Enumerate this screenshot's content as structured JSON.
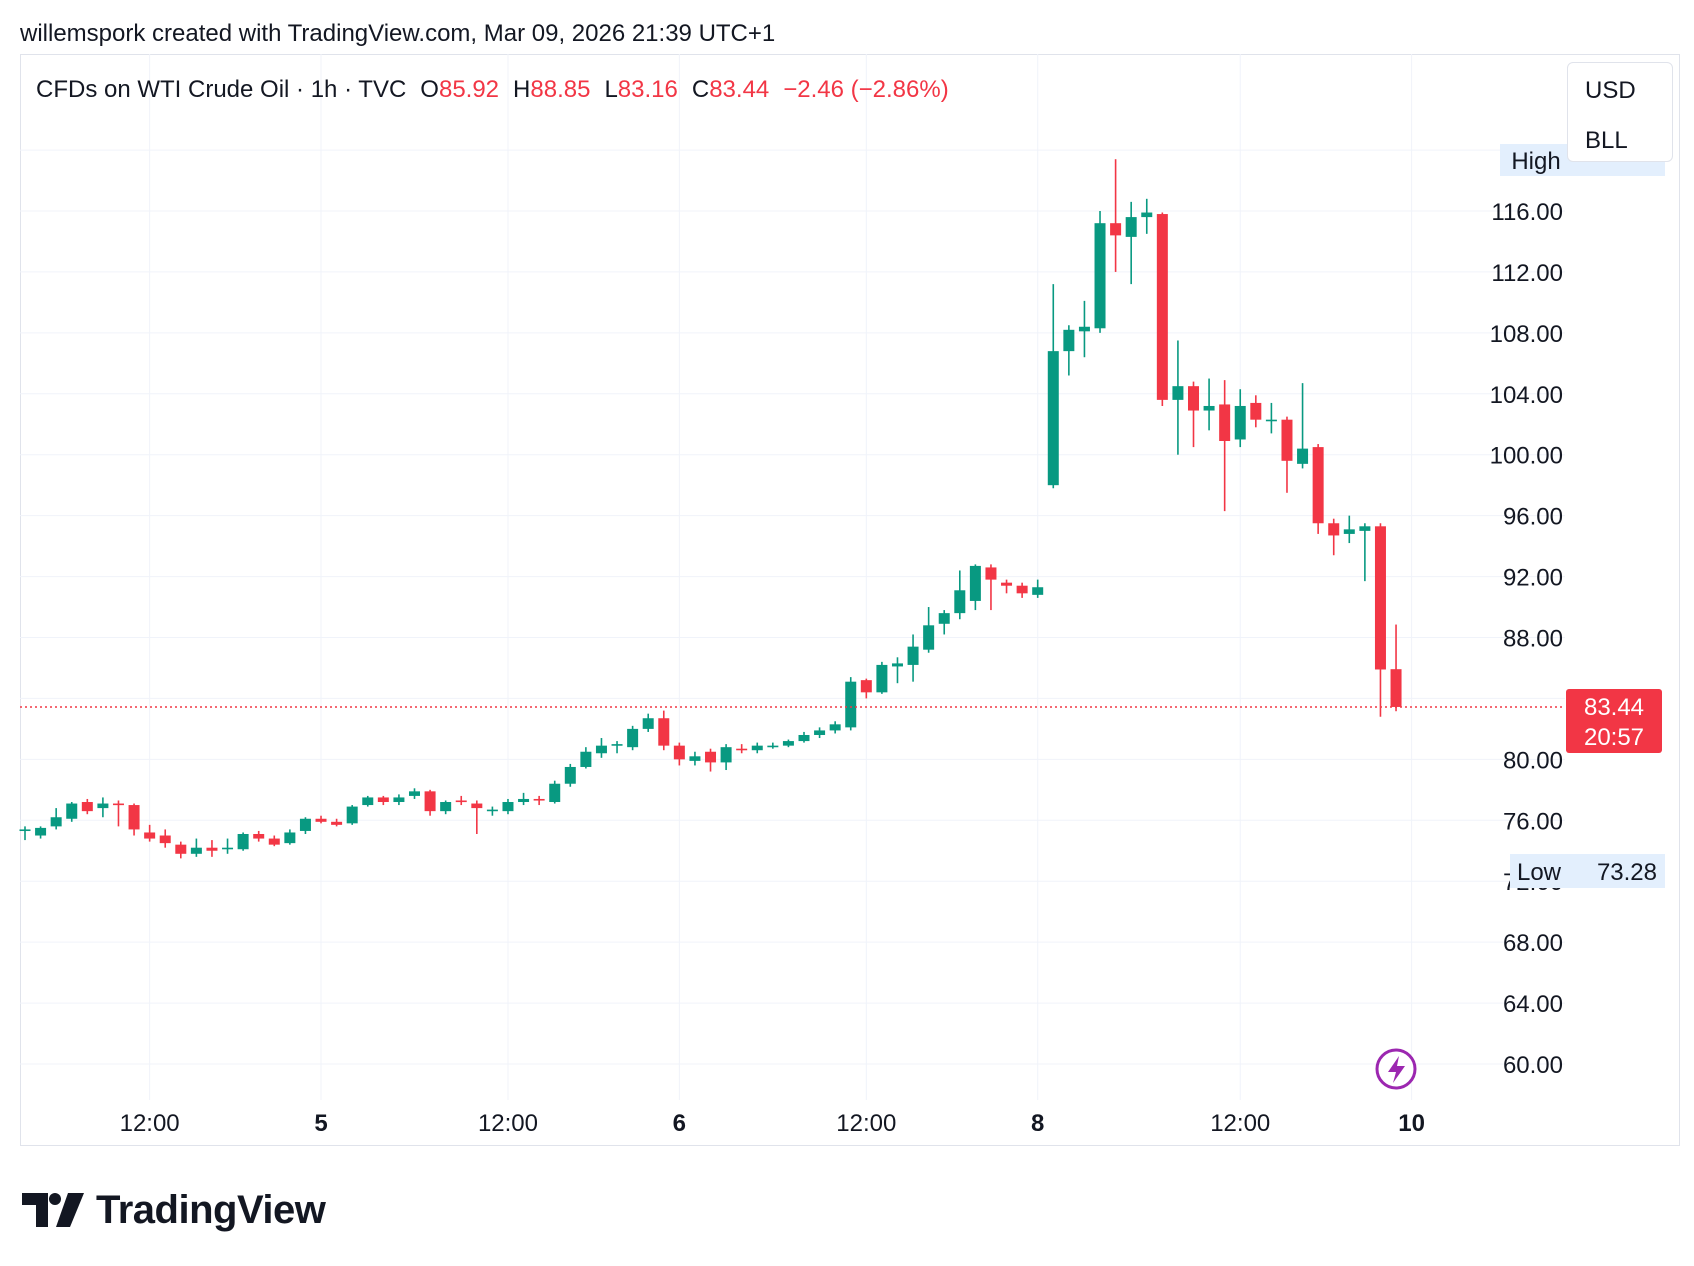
{
  "header": {
    "credit": "willemspork created with TradingView.com, Mar 09, 2026 21:39 UTC+1"
  },
  "legend": {
    "symbol": "CFDs on WTI Crude Oil · 1h · TVC",
    "open_label": "O",
    "open": "85.92",
    "high_label": "H",
    "high": "88.85",
    "low_label": "L",
    "low": "83.16",
    "close_label": "C",
    "close": "83.44",
    "change": "−2.46 (−2.86%)"
  },
  "currency": {
    "primary": "USD",
    "secondary": "BLL"
  },
  "price_axis": {
    "high_label": "High",
    "low_label": "Low",
    "low_value": "73.28",
    "last_price": "83.44",
    "countdown": "20:57"
  },
  "brand": {
    "name": "TradingView"
  },
  "colors": {
    "up": "#089981",
    "down": "#f23645",
    "grid": "#f0f3fa",
    "text": "#131722",
    "purple": "#9c27b0"
  },
  "icons": {
    "lightning": "lightning-icon",
    "logo": "tradingview-logo-icon"
  },
  "chart_data": {
    "type": "candlestick",
    "title": "CFDs on WTI Crude Oil · 1h · TVC",
    "ylim": [
      58,
      122
    ],
    "yticks": [
      60,
      64,
      68,
      72,
      76,
      80,
      88,
      92,
      96,
      100,
      104,
      108,
      112,
      116
    ],
    "ytick_labels": [
      "60.00",
      "64.00",
      "68.00",
      "72.00",
      "76.00",
      "80.00",
      "88.00",
      "92.00",
      "96.00",
      "100.00",
      "104.00",
      "108.00",
      "112.00",
      "116.00"
    ],
    "xticks": [
      {
        "label": "12:00",
        "index": 8,
        "bold": false
      },
      {
        "label": "5",
        "index": 19,
        "bold": true
      },
      {
        "label": "12:00",
        "index": 31,
        "bold": false
      },
      {
        "label": "6",
        "index": 42,
        "bold": true
      },
      {
        "label": "12:00",
        "index": 54,
        "bold": false
      },
      {
        "label": "8",
        "index": 65,
        "bold": true
      },
      {
        "label": "12:00",
        "index": 78,
        "bold": false
      },
      {
        "label": "10",
        "index": 89,
        "bold": true
      }
    ],
    "last_price": 83.44,
    "candles": [
      {
        "i": 0,
        "o": 75.3,
        "h": 75.6,
        "l": 74.7,
        "c": 75.4
      },
      {
        "i": 1,
        "o": 75.0,
        "h": 75.6,
        "l": 74.8,
        "c": 75.5
      },
      {
        "i": 2,
        "o": 75.6,
        "h": 76.8,
        "l": 75.4,
        "c": 76.2
      },
      {
        "i": 3,
        "o": 76.1,
        "h": 77.2,
        "l": 75.9,
        "c": 77.1
      },
      {
        "i": 4,
        "o": 77.2,
        "h": 77.4,
        "l": 76.4,
        "c": 76.6
      },
      {
        "i": 5,
        "o": 76.8,
        "h": 77.5,
        "l": 76.2,
        "c": 77.1
      },
      {
        "i": 6,
        "o": 77.1,
        "h": 77.3,
        "l": 75.6,
        "c": 77.0
      },
      {
        "i": 7,
        "o": 77.0,
        "h": 77.1,
        "l": 75.0,
        "c": 75.4
      },
      {
        "i": 8,
        "o": 75.2,
        "h": 75.7,
        "l": 74.6,
        "c": 74.8
      },
      {
        "i": 9,
        "o": 75.0,
        "h": 75.4,
        "l": 74.2,
        "c": 74.5
      },
      {
        "i": 10,
        "o": 74.4,
        "h": 74.6,
        "l": 73.5,
        "c": 73.8
      },
      {
        "i": 11,
        "o": 73.8,
        "h": 74.8,
        "l": 73.6,
        "c": 74.2
      },
      {
        "i": 12,
        "o": 74.2,
        "h": 74.7,
        "l": 73.6,
        "c": 74.0
      },
      {
        "i": 13,
        "o": 74.1,
        "h": 74.8,
        "l": 73.8,
        "c": 74.2
      },
      {
        "i": 14,
        "o": 74.1,
        "h": 75.2,
        "l": 74.0,
        "c": 75.1
      },
      {
        "i": 15,
        "o": 75.1,
        "h": 75.3,
        "l": 74.6,
        "c": 74.8
      },
      {
        "i": 16,
        "o": 74.8,
        "h": 75.0,
        "l": 74.3,
        "c": 74.4
      },
      {
        "i": 17,
        "o": 74.5,
        "h": 75.4,
        "l": 74.4,
        "c": 75.2
      },
      {
        "i": 18,
        "o": 75.3,
        "h": 76.2,
        "l": 75.1,
        "c": 76.1
      },
      {
        "i": 19,
        "o": 76.1,
        "h": 76.3,
        "l": 75.8,
        "c": 75.9
      },
      {
        "i": 20,
        "o": 75.9,
        "h": 76.1,
        "l": 75.6,
        "c": 75.7
      },
      {
        "i": 21,
        "o": 75.8,
        "h": 77.0,
        "l": 75.7,
        "c": 76.9
      },
      {
        "i": 22,
        "o": 77.0,
        "h": 77.6,
        "l": 76.9,
        "c": 77.5
      },
      {
        "i": 23,
        "o": 77.5,
        "h": 77.6,
        "l": 77.0,
        "c": 77.2
      },
      {
        "i": 24,
        "o": 77.2,
        "h": 77.7,
        "l": 77.0,
        "c": 77.5
      },
      {
        "i": 25,
        "o": 77.6,
        "h": 78.1,
        "l": 77.4,
        "c": 77.9
      },
      {
        "i": 26,
        "o": 77.9,
        "h": 78.0,
        "l": 76.3,
        "c": 76.6
      },
      {
        "i": 27,
        "o": 76.6,
        "h": 77.3,
        "l": 76.4,
        "c": 77.2
      },
      {
        "i": 28,
        "o": 77.3,
        "h": 77.6,
        "l": 77.0,
        "c": 77.2
      },
      {
        "i": 29,
        "o": 77.1,
        "h": 77.3,
        "l": 75.1,
        "c": 76.8
      },
      {
        "i": 30,
        "o": 76.7,
        "h": 76.9,
        "l": 76.3,
        "c": 76.7
      },
      {
        "i": 31,
        "o": 76.6,
        "h": 77.4,
        "l": 76.4,
        "c": 77.2
      },
      {
        "i": 32,
        "o": 77.2,
        "h": 77.8,
        "l": 77.0,
        "c": 77.4
      },
      {
        "i": 33,
        "o": 77.4,
        "h": 77.6,
        "l": 77.0,
        "c": 77.3
      },
      {
        "i": 34,
        "o": 77.2,
        "h": 78.6,
        "l": 77.1,
        "c": 78.4
      },
      {
        "i": 35,
        "o": 78.4,
        "h": 79.7,
        "l": 78.2,
        "c": 79.5
      },
      {
        "i": 36,
        "o": 79.5,
        "h": 80.8,
        "l": 79.4,
        "c": 80.5
      },
      {
        "i": 37,
        "o": 80.4,
        "h": 81.4,
        "l": 80.1,
        "c": 80.9
      },
      {
        "i": 38,
        "o": 80.9,
        "h": 81.2,
        "l": 80.4,
        "c": 81.0
      },
      {
        "i": 39,
        "o": 80.8,
        "h": 82.2,
        "l": 80.6,
        "c": 82.0
      },
      {
        "i": 40,
        "o": 82.0,
        "h": 83.0,
        "l": 81.8,
        "c": 82.7
      },
      {
        "i": 41,
        "o": 82.7,
        "h": 83.2,
        "l": 80.6,
        "c": 80.9
      },
      {
        "i": 42,
        "o": 80.9,
        "h": 81.1,
        "l": 79.6,
        "c": 80.0
      },
      {
        "i": 43,
        "o": 79.9,
        "h": 80.5,
        "l": 79.6,
        "c": 80.2
      },
      {
        "i": 44,
        "o": 80.5,
        "h": 80.7,
        "l": 79.2,
        "c": 79.8
      },
      {
        "i": 45,
        "o": 79.8,
        "h": 81.0,
        "l": 79.3,
        "c": 80.8
      },
      {
        "i": 46,
        "o": 80.7,
        "h": 81.0,
        "l": 80.4,
        "c": 80.6
      },
      {
        "i": 47,
        "o": 80.6,
        "h": 81.1,
        "l": 80.4,
        "c": 80.9
      },
      {
        "i": 48,
        "o": 80.8,
        "h": 81.1,
        "l": 80.7,
        "c": 80.9
      },
      {
        "i": 49,
        "o": 80.9,
        "h": 81.3,
        "l": 80.8,
        "c": 81.2
      },
      {
        "i": 50,
        "o": 81.2,
        "h": 81.8,
        "l": 81.1,
        "c": 81.6
      },
      {
        "i": 51,
        "o": 81.6,
        "h": 82.1,
        "l": 81.4,
        "c": 81.9
      },
      {
        "i": 52,
        "o": 81.9,
        "h": 82.5,
        "l": 81.7,
        "c": 82.3
      },
      {
        "i": 53,
        "o": 82.1,
        "h": 85.4,
        "l": 81.9,
        "c": 85.1
      },
      {
        "i": 54,
        "o": 85.2,
        "h": 85.3,
        "l": 84.0,
        "c": 84.4
      },
      {
        "i": 55,
        "o": 84.4,
        "h": 86.4,
        "l": 84.3,
        "c": 86.2
      },
      {
        "i": 56,
        "o": 86.1,
        "h": 86.7,
        "l": 85.0,
        "c": 86.3
      },
      {
        "i": 57,
        "o": 86.2,
        "h": 88.2,
        "l": 85.1,
        "c": 87.4
      },
      {
        "i": 58,
        "o": 87.2,
        "h": 90.0,
        "l": 87.0,
        "c": 88.8
      },
      {
        "i": 59,
        "o": 88.9,
        "h": 89.8,
        "l": 88.2,
        "c": 89.6
      },
      {
        "i": 60,
        "o": 89.6,
        "h": 92.4,
        "l": 89.2,
        "c": 91.1
      },
      {
        "i": 61,
        "o": 90.4,
        "h": 92.8,
        "l": 89.8,
        "c": 92.7
      },
      {
        "i": 62,
        "o": 92.6,
        "h": 92.8,
        "l": 89.8,
        "c": 91.8
      },
      {
        "i": 63,
        "o": 91.6,
        "h": 91.8,
        "l": 90.9,
        "c": 91.4
      },
      {
        "i": 64,
        "o": 91.4,
        "h": 91.6,
        "l": 90.6,
        "c": 90.9
      },
      {
        "i": 65,
        "o": 90.8,
        "h": 91.8,
        "l": 90.6,
        "c": 91.3
      },
      {
        "i": 66,
        "o": 98.0,
        "h": 111.2,
        "l": 97.8,
        "c": 106.8
      },
      {
        "i": 67,
        "o": 106.8,
        "h": 108.5,
        "l": 105.2,
        "c": 108.2
      },
      {
        "i": 68,
        "o": 108.1,
        "h": 110.1,
        "l": 106.4,
        "c": 108.4
      },
      {
        "i": 69,
        "o": 108.3,
        "h": 116.0,
        "l": 108.0,
        "c": 115.2
      },
      {
        "i": 70,
        "o": 115.2,
        "h": 119.4,
        "l": 112.0,
        "c": 114.4
      },
      {
        "i": 71,
        "o": 114.3,
        "h": 116.6,
        "l": 111.2,
        "c": 115.6
      },
      {
        "i": 72,
        "o": 115.6,
        "h": 116.8,
        "l": 114.5,
        "c": 115.9
      },
      {
        "i": 73,
        "o": 115.8,
        "h": 115.9,
        "l": 103.2,
        "c": 103.6
      },
      {
        "i": 74,
        "o": 103.6,
        "h": 107.5,
        "l": 100.0,
        "c": 104.5
      },
      {
        "i": 75,
        "o": 104.5,
        "h": 104.8,
        "l": 100.5,
        "c": 102.9
      },
      {
        "i": 76,
        "o": 102.9,
        "h": 105.0,
        "l": 101.6,
        "c": 103.2
      },
      {
        "i": 77,
        "o": 103.3,
        "h": 104.9,
        "l": 96.3,
        "c": 100.9
      },
      {
        "i": 78,
        "o": 101.0,
        "h": 104.3,
        "l": 100.5,
        "c": 103.2
      },
      {
        "i": 79,
        "o": 103.4,
        "h": 103.9,
        "l": 101.8,
        "c": 102.3
      },
      {
        "i": 80,
        "o": 102.2,
        "h": 103.4,
        "l": 101.4,
        "c": 102.3
      },
      {
        "i": 81,
        "o": 102.3,
        "h": 102.5,
        "l": 97.5,
        "c": 99.6
      },
      {
        "i": 82,
        "o": 99.4,
        "h": 104.7,
        "l": 99.1,
        "c": 100.4
      },
      {
        "i": 83,
        "o": 100.5,
        "h": 100.7,
        "l": 94.8,
        "c": 95.5
      },
      {
        "i": 84,
        "o": 95.5,
        "h": 95.8,
        "l": 93.4,
        "c": 94.7
      },
      {
        "i": 85,
        "o": 94.8,
        "h": 96.0,
        "l": 94.2,
        "c": 95.1
      },
      {
        "i": 86,
        "o": 95.0,
        "h": 95.5,
        "l": 91.7,
        "c": 95.3
      },
      {
        "i": 87,
        "o": 95.3,
        "h": 95.5,
        "l": 82.8,
        "c": 85.9
      },
      {
        "i": 88,
        "o": 85.92,
        "h": 88.85,
        "l": 83.16,
        "c": 83.44
      }
    ]
  }
}
